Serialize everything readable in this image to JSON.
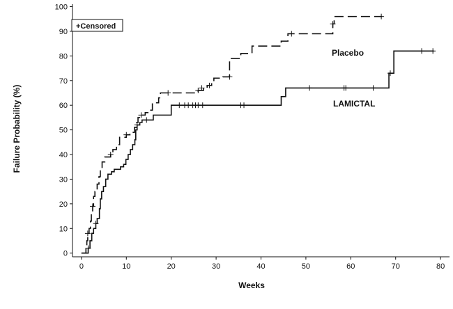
{
  "chart_data": {
    "type": "line",
    "xlabel": "Weeks",
    "ylabel": "Failure Probability (%)",
    "xlim": [
      -2,
      82
    ],
    "ylim": [
      -1.5,
      101
    ],
    "xticks": [
      0,
      10,
      20,
      30,
      40,
      50,
      60,
      70,
      80
    ],
    "yticks": [
      0,
      10,
      20,
      30,
      40,
      50,
      60,
      70,
      80,
      90,
      100
    ],
    "grid": false,
    "legend": {
      "position": "top-left",
      "text": "+Censored"
    },
    "series": [
      {
        "name": "Placebo",
        "style": "dashed",
        "step_points": [
          [
            0,
            0
          ],
          [
            1.0,
            2
          ],
          [
            1.2,
            5
          ],
          [
            1.4,
            8
          ],
          [
            1.7,
            10
          ],
          [
            2.0,
            13
          ],
          [
            2.2,
            16
          ],
          [
            2.5,
            19
          ],
          [
            2.7,
            23
          ],
          [
            3.0,
            25
          ],
          [
            3.5,
            28
          ],
          [
            3.9,
            31
          ],
          [
            4.2,
            34
          ],
          [
            4.6,
            37
          ],
          [
            5.2,
            39
          ],
          [
            6.5,
            40
          ],
          [
            7.0,
            42
          ],
          [
            7.8,
            44
          ],
          [
            8.5,
            47
          ],
          [
            10.0,
            48
          ],
          [
            10.8,
            49
          ],
          [
            11.8,
            51
          ],
          [
            12.3,
            53
          ],
          [
            12.6,
            55
          ],
          [
            13.3,
            56
          ],
          [
            14.2,
            57
          ],
          [
            15.0,
            58
          ],
          [
            15.8,
            61
          ],
          [
            17.2,
            63
          ],
          [
            17.6,
            65
          ],
          [
            26.0,
            66
          ],
          [
            27.2,
            67
          ],
          [
            28.0,
            68
          ],
          [
            29.0,
            69
          ],
          [
            29.5,
            71
          ],
          [
            31.5,
            71.5
          ],
          [
            33.0,
            79
          ],
          [
            35.5,
            81
          ],
          [
            38.0,
            84
          ],
          [
            44.5,
            86
          ],
          [
            46.0,
            89
          ],
          [
            56.0,
            93
          ],
          [
            56.3,
            96
          ],
          [
            67.0,
            96
          ]
        ],
        "censored": [
          [
            1.4,
            8
          ],
          [
            2.5,
            19
          ],
          [
            6.5,
            40
          ],
          [
            10.0,
            48
          ],
          [
            13.3,
            56
          ],
          [
            19.3,
            65
          ],
          [
            26.0,
            66
          ],
          [
            26.8,
            67
          ],
          [
            28.5,
            68
          ],
          [
            33.0,
            71.5
          ],
          [
            46.8,
            89
          ],
          [
            56.0,
            93
          ],
          [
            66.8,
            96
          ]
        ]
      },
      {
        "name": "LAMICTAL",
        "style": "solid",
        "step_points": [
          [
            0,
            0
          ],
          [
            1.5,
            2
          ],
          [
            1.9,
            5
          ],
          [
            2.3,
            8
          ],
          [
            2.7,
            10
          ],
          [
            3.2,
            12
          ],
          [
            3.5,
            14
          ],
          [
            4.0,
            18
          ],
          [
            4.2,
            22
          ],
          [
            4.5,
            25
          ],
          [
            4.9,
            27
          ],
          [
            5.4,
            30
          ],
          [
            5.9,
            32
          ],
          [
            6.7,
            33
          ],
          [
            7.3,
            34
          ],
          [
            8.7,
            35
          ],
          [
            9.4,
            36
          ],
          [
            9.9,
            38
          ],
          [
            10.4,
            40
          ],
          [
            10.9,
            42
          ],
          [
            11.4,
            44
          ],
          [
            11.9,
            46
          ],
          [
            12.1,
            50
          ],
          [
            12.4,
            52
          ],
          [
            13.0,
            53
          ],
          [
            13.5,
            54
          ],
          [
            16.0,
            56
          ],
          [
            20.0,
            60
          ],
          [
            44.5,
            63.5
          ],
          [
            45.5,
            67
          ],
          [
            68.5,
            73
          ],
          [
            69.6,
            82
          ],
          [
            78.5,
            82
          ]
        ],
        "censored": [
          [
            1.5,
            2
          ],
          [
            3.2,
            12
          ],
          [
            12.4,
            52
          ],
          [
            14.5,
            54
          ],
          [
            21.8,
            60
          ],
          [
            23.0,
            60
          ],
          [
            23.8,
            60
          ],
          [
            24.8,
            60
          ],
          [
            25.4,
            60
          ],
          [
            26.0,
            60
          ],
          [
            27.0,
            60
          ],
          [
            35.5,
            60
          ],
          [
            36.2,
            60
          ],
          [
            50.8,
            67
          ],
          [
            58.5,
            67
          ],
          [
            58.9,
            67
          ],
          [
            65.0,
            67
          ],
          [
            68.8,
            73
          ],
          [
            75.8,
            82
          ],
          [
            78.3,
            82
          ]
        ]
      }
    ]
  }
}
